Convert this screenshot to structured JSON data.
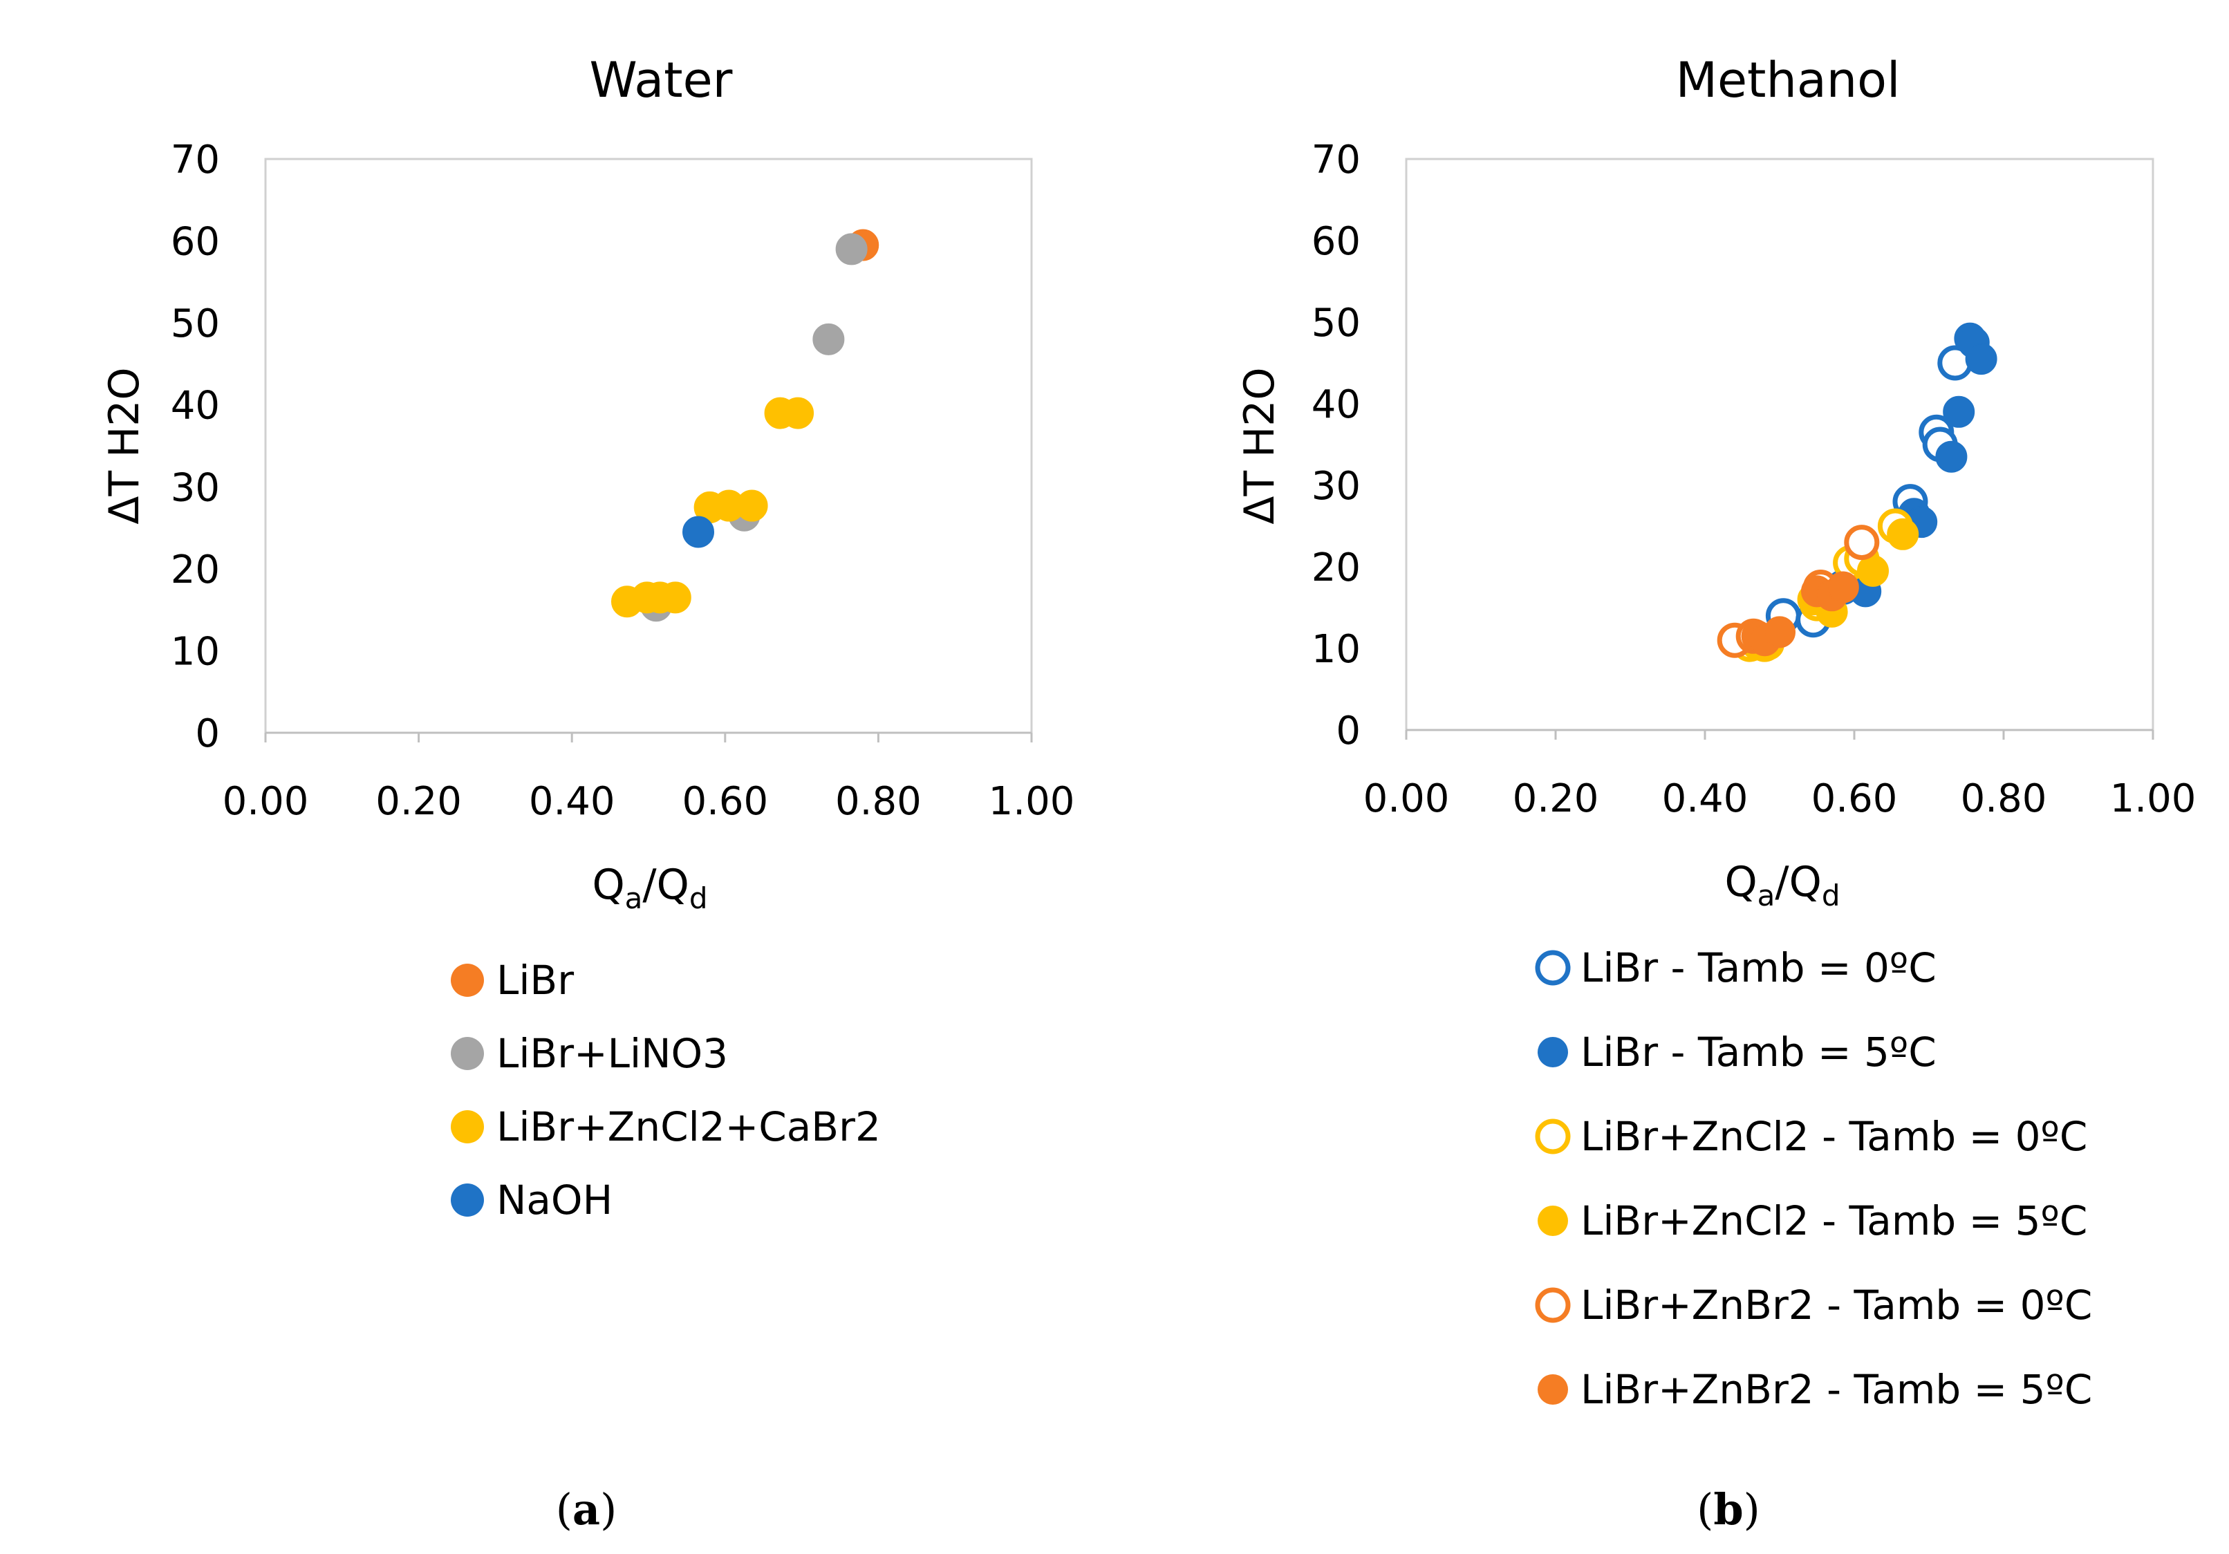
{
  "chart_data": [
    {
      "type": "scatter",
      "title": "Water",
      "xlabel_main": "Q",
      "xlabel_sub1": "a",
      "xlabel_sep": "/Q",
      "xlabel_sub2": "d",
      "ylabel": "ΔT H2O",
      "xlim": [
        0,
        1
      ],
      "ylim": [
        0,
        70
      ],
      "xticks": [
        "0.00",
        "0.20",
        "0.40",
        "0.60",
        "0.80",
        "1.00"
      ],
      "yticks": [
        "0",
        "10",
        "20",
        "30",
        "40",
        "50",
        "60",
        "70"
      ],
      "caption_open": "(",
      "caption_letter": "a",
      "caption_close": ")",
      "series": [
        {
          "name": "LiBr",
          "color": "#f57d24",
          "filled": true,
          "x": [
            0.78
          ],
          "y": [
            59.5
          ]
        },
        {
          "name": "LiBr+LiNO3",
          "color": "#a5a5a5",
          "filled": true,
          "x": [
            0.765,
            0.735,
            0.625,
            0.51
          ],
          "y": [
            59,
            48,
            26.5,
            15.5
          ]
        },
        {
          "name": "LiBr+ZnCl2+CaBr2",
          "color": "#ffc000",
          "filled": true,
          "x": [
            0.472,
            0.498,
            0.515,
            0.535,
            0.58,
            0.605,
            0.635,
            0.672,
            0.695
          ],
          "y": [
            16,
            16.5,
            16.5,
            16.5,
            27.5,
            27.7,
            27.7,
            39,
            39
          ]
        },
        {
          "name": "NaOH",
          "color": "#1f73c6",
          "filled": true,
          "x": [
            0.565
          ],
          "y": [
            24.5
          ]
        }
      ]
    },
    {
      "type": "scatter",
      "title": "Methanol",
      "xlabel_main": "Q",
      "xlabel_sub1": "a",
      "xlabel_sep": "/Q",
      "xlabel_sub2": "d",
      "ylabel": "ΔT H2O",
      "xlim": [
        0,
        1
      ],
      "ylim": [
        0,
        70
      ],
      "xticks": [
        "0.00",
        "0.20",
        "0.40",
        "0.60",
        "0.80",
        "1.00"
      ],
      "yticks": [
        "0",
        "10",
        "20",
        "30",
        "40",
        "50",
        "60",
        "70"
      ],
      "caption_open": "(",
      "caption_letter": "b",
      "caption_close": ")",
      "series": [
        {
          "name": "LiBr - Tamb = 0ºC",
          "color": "#1f73c6",
          "filled": false,
          "x": [
            0.505,
            0.545,
            0.585,
            0.675,
            0.71,
            0.715,
            0.735
          ],
          "y": [
            14,
            13.5,
            17.5,
            28,
            36.5,
            35,
            45
          ]
        },
        {
          "name": "LiBr - Tamb = 5ºC",
          "color": "#1f73c6",
          "filled": true,
          "x": [
            0.615,
            0.68,
            0.69,
            0.73,
            0.74,
            0.755,
            0.76,
            0.77
          ],
          "y": [
            17,
            26.5,
            25.5,
            33.5,
            39,
            48,
            47.5,
            45.5
          ]
        },
        {
          "name": "LiBr+ZnCl2 - Tamb = 0ºC",
          "color": "#ffc000",
          "filled": false,
          "x": [
            0.46,
            0.48,
            0.55,
            0.595,
            0.61,
            0.655
          ],
          "y": [
            10.5,
            10.5,
            15.5,
            20.5,
            21,
            25
          ]
        },
        {
          "name": "LiBr+ZnCl2 - Tamb = 5ºC",
          "color": "#ffc000",
          "filled": true,
          "x": [
            0.47,
            0.485,
            0.545,
            0.57,
            0.625,
            0.665
          ],
          "y": [
            10.5,
            10.5,
            16,
            14.5,
            19.5,
            24
          ]
        },
        {
          "name": "LiBr+ZnBr2 - Tamb = 0ºC",
          "color": "#f57d24",
          "filled": false,
          "x": [
            0.44,
            0.465,
            0.555,
            0.61
          ],
          "y": [
            11,
            11.5,
            17.5,
            23
          ]
        },
        {
          "name": "LiBr+ZnBr2 - Tamb = 5ºC",
          "color": "#f57d24",
          "filled": true,
          "x": [
            0.47,
            0.48,
            0.5,
            0.55,
            0.57,
            0.585
          ],
          "y": [
            11.5,
            11,
            12,
            17,
            16.5,
            17.5
          ]
        }
      ]
    }
  ]
}
